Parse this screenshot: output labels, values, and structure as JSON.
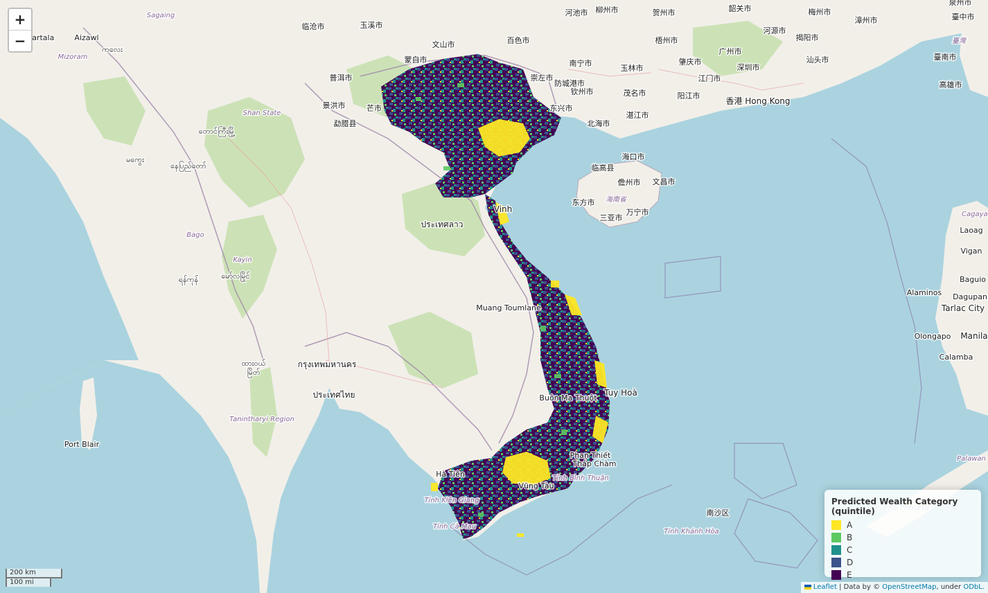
{
  "zoom": {
    "in_label": "+",
    "out_label": "−"
  },
  "legend": {
    "title": "Predicted Wealth Category (quintile)",
    "items": [
      {
        "label": "A",
        "color": "#fde725"
      },
      {
        "label": "B",
        "color": "#5ec962"
      },
      {
        "label": "C",
        "color": "#21918c"
      },
      {
        "label": "D",
        "color": "#3b528b"
      },
      {
        "label": "E",
        "color": "#440154"
      }
    ]
  },
  "scale": {
    "km": "200 km",
    "mi": "100 mi"
  },
  "attribution": {
    "leaflet": "Leaflet",
    "sep1": " | Data by © ",
    "osm": "OpenStreetMap",
    "sep2": ", under ",
    "odbl": "ODbL."
  },
  "colors": {
    "sea": "#aad3df",
    "land": "#f2efe9",
    "forest": "#c8e0b0"
  },
  "labels": [
    {
      "text": "Agartala"
    },
    {
      "text": "Aizawl"
    },
    {
      "text": "Mizoram"
    },
    {
      "text": "Sagaing"
    },
    {
      "text": "Shan State"
    },
    {
      "text": "Kayin"
    },
    {
      "text": "Bago"
    },
    {
      "text": "Tanintharyi Region"
    },
    {
      "text": "Port Blair"
    },
    {
      "text": "Vinh"
    },
    {
      "text": "Muang Toumlane"
    },
    {
      "text": "Tuy Hoà"
    },
    {
      "text": "Vũng Tàu"
    },
    {
      "text": "Hà Tiên"
    },
    {
      "text": "Tỉnh Kiên Giang"
    },
    {
      "text": "Tỉnh Cà Mau"
    },
    {
      "text": "Tỉnh Bình Thuận"
    },
    {
      "text": "Phan Thiết"
    },
    {
      "text": "Tháp Chàm"
    },
    {
      "text": "Tỉnh Khánh Hòa"
    },
    {
      "text": "南沙区"
    },
    {
      "text": "Puerto Princesa"
    },
    {
      "text": "Palawan"
    },
    {
      "text": "Olongapo"
    },
    {
      "text": "Manila"
    },
    {
      "text": "Calamba"
    },
    {
      "text": "Alaminos"
    },
    {
      "text": "Dagupan"
    },
    {
      "text": "Tarlac City"
    },
    {
      "text": "Baguio"
    },
    {
      "text": "Vigan"
    },
    {
      "text": "Laoag"
    },
    {
      "text": "Cagayan"
    },
    {
      "text": "香港 Hong Kong"
    },
    {
      "text": "广州市"
    },
    {
      "text": "深圳市"
    },
    {
      "text": "南宁市"
    },
    {
      "text": "海口市"
    },
    {
      "text": "三亚市"
    },
    {
      "text": "儋州市"
    },
    {
      "text": "北海市"
    },
    {
      "text": "湛江市"
    },
    {
      "text": "东方市"
    },
    {
      "text": "海南省"
    },
    {
      "text": "万宁市"
    },
    {
      "text": "文昌市"
    },
    {
      "text": "临高县"
    },
    {
      "text": "钦州市"
    },
    {
      "text": "玉林市"
    },
    {
      "text": "梧州市"
    },
    {
      "text": "河源市"
    },
    {
      "text": "汕头市"
    },
    {
      "text": "揭阳市"
    },
    {
      "text": "梅州市"
    },
    {
      "text": "韶关市"
    },
    {
      "text": "漳州市"
    },
    {
      "text": "泉州市"
    },
    {
      "text": "臺中市"
    },
    {
      "text": "臺南市"
    },
    {
      "text": "高雄市"
    },
    {
      "text": "臺灣"
    },
    {
      "text": "百色市"
    },
    {
      "text": "文山市"
    },
    {
      "text": "蒙自市"
    },
    {
      "text": "玉溪市"
    },
    {
      "text": "临沧市"
    },
    {
      "text": "景洪市"
    },
    {
      "text": "普洱市"
    },
    {
      "text": "芒市"
    },
    {
      "text": "勐腊县"
    },
    {
      "text": "河池市"
    },
    {
      "text": "柳州市"
    },
    {
      "text": "贺州市"
    },
    {
      "text": "肇庆市"
    },
    {
      "text": "江门市"
    },
    {
      "text": "阳江市"
    },
    {
      "text": "茂名市"
    },
    {
      "text": "崇左市"
    },
    {
      "text": "防城港市"
    },
    {
      "text": "东兴市"
    },
    {
      "text": "ประเทศไทย"
    },
    {
      "text": "กรุงเทพมหานคร"
    },
    {
      "text": "ประเทศลาว"
    },
    {
      "text": "ကလေး"
    },
    {
      "text": "မကွေး"
    },
    {
      "text": "နေပြည်တော်"
    },
    {
      "text": "တောင်ကြီးမြို့"
    },
    {
      "text": "ရန်ကုန်"
    },
    {
      "text": "မော်လမြိုင်"
    },
    {
      "text": "ထားဝယ်"
    },
    {
      "text": "မြိတ်"
    },
    {
      "text": "Buôn Ma Thuột"
    }
  ]
}
